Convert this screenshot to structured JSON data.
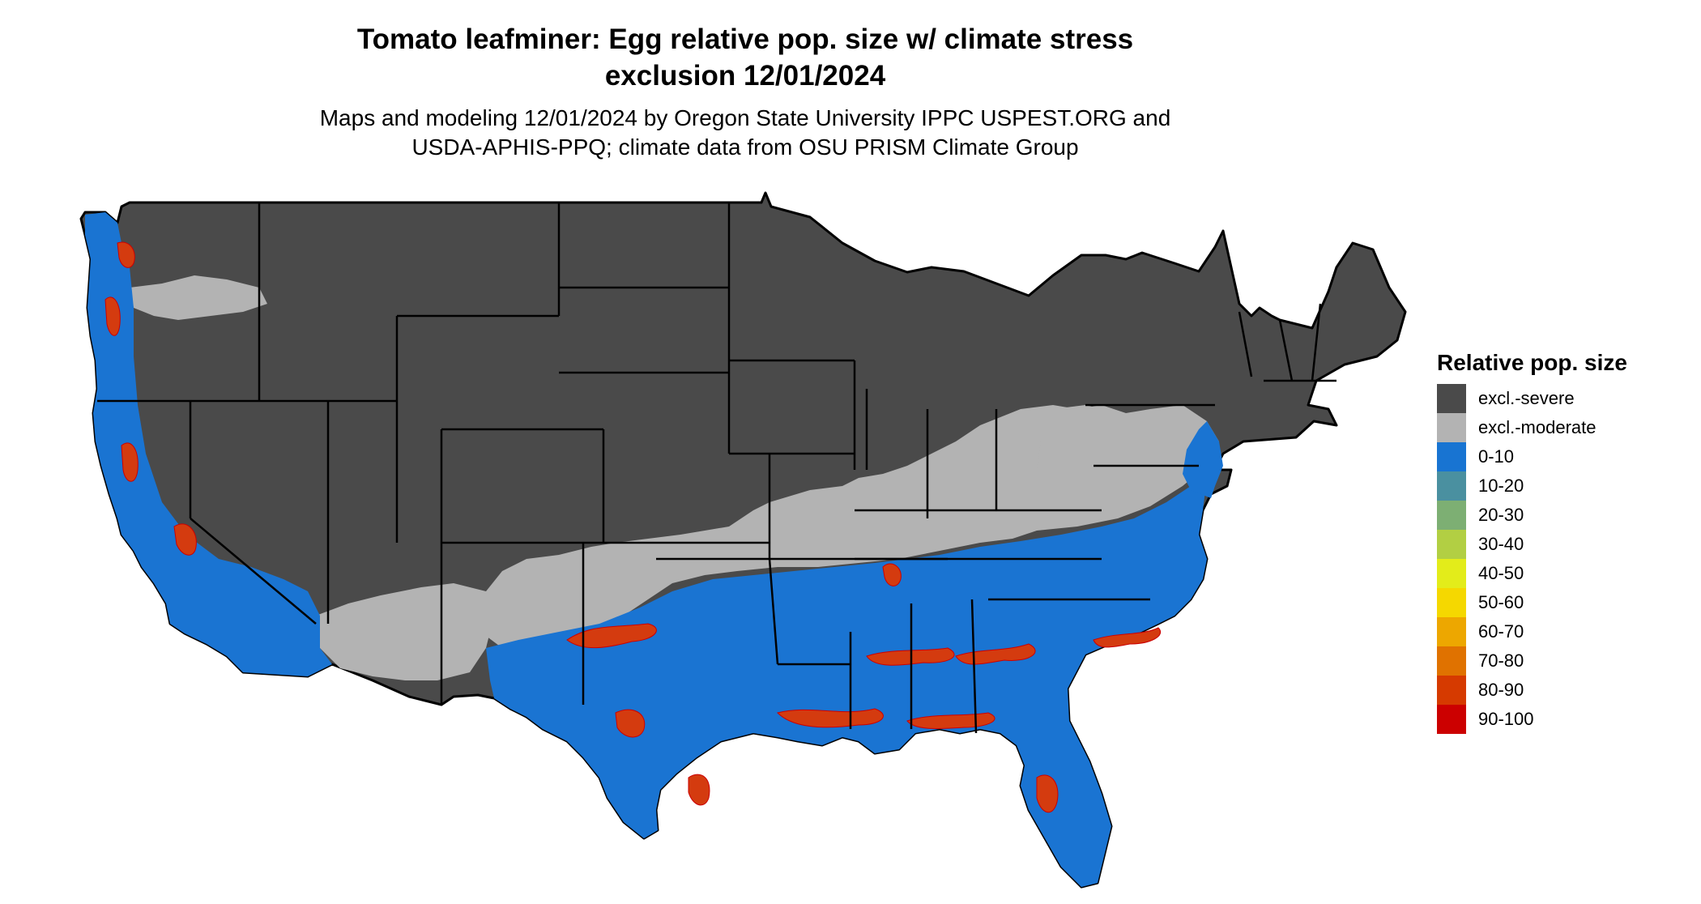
{
  "title": {
    "line1": "Tomato leafminer: Egg relative pop. size w/ climate stress",
    "line2": "exclusion 12/01/2024"
  },
  "subtitle": {
    "line1": "Maps and modeling 12/01/2024 by Oregon State University IPPC USPEST.ORG and",
    "line2": "USDA-APHIS-PPQ; climate data from OSU PRISM Climate Group"
  },
  "map": {
    "region": "Contiguous United States",
    "colors": {
      "excl_severe": "#4a4a4a",
      "excl_moderate": "#b3b3b3",
      "low": "#1a74d2",
      "high": "#d43b0f",
      "highest": "#cc0000",
      "state_border": "#000000"
    }
  },
  "legend": {
    "title": "Relative pop. size",
    "items": [
      {
        "label": "excl.-severe",
        "color": "#4a4a4a"
      },
      {
        "label": "excl.-moderate",
        "color": "#b3b3b3"
      },
      {
        "label": "0-10",
        "color": "#1874d2"
      },
      {
        "label": "10-20",
        "color": "#4a90a0"
      },
      {
        "label": "20-30",
        "color": "#7daf73"
      },
      {
        "label": "30-40",
        "color": "#b2cf43"
      },
      {
        "label": "40-50",
        "color": "#e3ec1a"
      },
      {
        "label": "50-60",
        "color": "#f5d800"
      },
      {
        "label": "60-70",
        "color": "#eda700"
      },
      {
        "label": "70-80",
        "color": "#e07200"
      },
      {
        "label": "80-90",
        "color": "#d63a00"
      },
      {
        "label": "90-100",
        "color": "#cc0000"
      }
    ]
  }
}
